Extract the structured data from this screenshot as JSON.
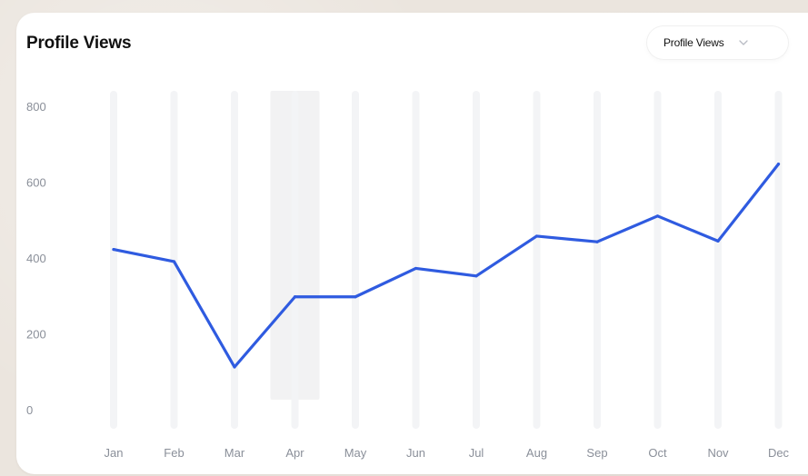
{
  "card": {
    "title": "Profile Views"
  },
  "dropdown": {
    "selected": "Profile Views",
    "icon": "chevron-down-icon"
  },
  "colors": {
    "line": "#2f5be0",
    "gridband": "#f3f4f6",
    "highlight": "#ececee",
    "tick_text": "#8a8f99"
  },
  "chart_data": {
    "type": "line",
    "title": "Profile Views",
    "categories": [
      "Jan",
      "Feb",
      "Mar",
      "Apr",
      "May",
      "Jun",
      "Jul",
      "Aug",
      "Sep",
      "Oct",
      "Nov",
      "Dec"
    ],
    "series": [
      {
        "values": [
          425,
          393,
          115,
          300,
          300,
          375,
          355,
          460,
          445,
          513,
          447,
          650
        ]
      }
    ],
    "ylim": [
      0,
      800
    ],
    "yticks": [
      0,
      200,
      400,
      600,
      800
    ],
    "xlabel": "",
    "ylabel": "",
    "grid": "vertical bands",
    "legend": "none",
    "highlighted_category": "Apr"
  }
}
